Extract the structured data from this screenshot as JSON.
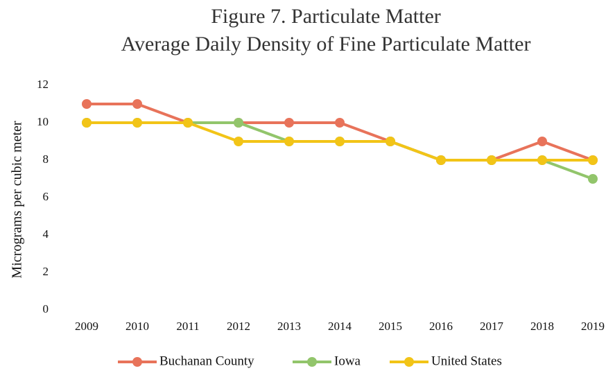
{
  "chart_data": {
    "type": "line",
    "title": "Figure 7. Particulate Matter",
    "subtitle": "Average Daily Density of  Fine Particulate Matter",
    "y_label": "Micrograms per cubic meter",
    "categories": [
      "2009",
      "2010",
      "2011",
      "2012",
      "2013",
      "2014",
      "2015",
      "2016",
      "2017",
      "2018",
      "2019"
    ],
    "series": [
      {
        "name": "Buchanan County",
        "color": "#e8735a",
        "values": [
          11,
          11,
          10,
          10,
          10,
          10,
          9,
          8,
          8,
          9,
          8
        ]
      },
      {
        "name": "Iowa",
        "color": "#92c56b",
        "values": [
          10,
          10,
          10,
          10,
          9,
          9,
          9,
          8,
          8,
          8,
          7
        ]
      },
      {
        "name": "United States",
        "color": "#f2c417",
        "values": [
          10,
          10,
          10,
          9,
          9,
          9,
          9,
          8,
          8,
          8,
          8
        ]
      }
    ],
    "ylim": [
      0,
      12
    ],
    "yticks": [
      0,
      2,
      4,
      6,
      8,
      10,
      12
    ],
    "grid": false,
    "legend": "bottom"
  }
}
